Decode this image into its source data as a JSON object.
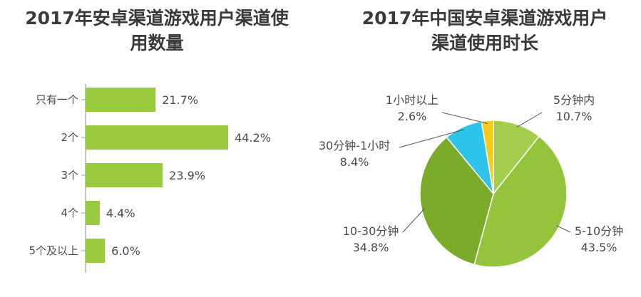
{
  "chart_data": [
    {
      "type": "bar",
      "orientation": "horizontal",
      "title": "2017年安卓渠道游戏用户渠道使用数量",
      "title_lines": [
        "2017年安卓渠道游戏用户渠道使",
        "用数量"
      ],
      "categories": [
        "只有一个",
        "2个",
        "3个",
        "4个",
        "5个及以上"
      ],
      "values": [
        21.7,
        44.2,
        23.9,
        4.4,
        6.0
      ],
      "value_labels": [
        "21.7%",
        "44.2%",
        "23.9%",
        "4.4%",
        "6.0%"
      ],
      "xlabel": "",
      "ylabel": "",
      "xlim": [
        0,
        50
      ],
      "grid": false,
      "bar_color": "#99c93c"
    },
    {
      "type": "pie",
      "title": "2017年中国安卓渠道游戏用户渠道使用时长",
      "title_lines": [
        "2017年中国安卓渠道游戏用户",
        "渠道使用时长"
      ],
      "slices": [
        {
          "name": "5分钟内",
          "value": 10.7,
          "label": "10.7%",
          "color": "#a5cd4d"
        },
        {
          "name": "5-10分钟",
          "value": 43.5,
          "label": "43.5%",
          "color": "#94c43b"
        },
        {
          "name": "10-30分钟",
          "value": 34.8,
          "label": "34.8%",
          "color": "#7aab2a"
        },
        {
          "name": "30分钟-1小时",
          "value": 8.4,
          "label": "8.4%",
          "color": "#2ec3ea"
        },
        {
          "name": "1小时以上",
          "value": 2.6,
          "label": "2.6%",
          "color": "#f7cb16"
        }
      ],
      "start_angle_deg": 0,
      "direction": "clockwise"
    }
  ]
}
